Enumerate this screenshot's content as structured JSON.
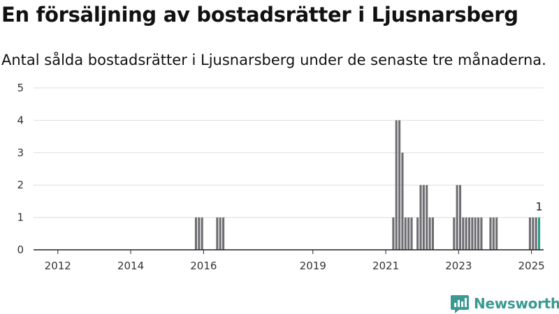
{
  "title": "En försäljning av bostadsrätter i Ljusnarsberg",
  "subtitle": "Antal sålda bostadsrätter i Ljusnarsberg under de senaste tre månaderna.",
  "brand": {
    "name": "Newsworthy",
    "icon": "newsworthy-logo-icon"
  },
  "colors": {
    "bar": "#6e6e73",
    "highlight": "#2a9d8f",
    "grid": "#dddddd",
    "axis": "#222222"
  },
  "chart_data": {
    "type": "bar",
    "x_axis": {
      "type": "date",
      "range": [
        "2011-05",
        "2025-05"
      ],
      "ticks": [
        "2012",
        "2014",
        "2016",
        "2019",
        "2021",
        "2023",
        "2025"
      ]
    },
    "y_axis": {
      "range": [
        0,
        5
      ],
      "ticks": [
        0,
        1,
        2,
        3,
        4,
        5
      ]
    },
    "grid": true,
    "series": [
      {
        "points": [
          {
            "x": "2015-10",
            "y": 1
          },
          {
            "x": "2015-11",
            "y": 1
          },
          {
            "x": "2015-12",
            "y": 1
          },
          {
            "x": "2016-05",
            "y": 1
          },
          {
            "x": "2016-06",
            "y": 1
          },
          {
            "x": "2016-07",
            "y": 1
          },
          {
            "x": "2021-03",
            "y": 1
          },
          {
            "x": "2021-04",
            "y": 4
          },
          {
            "x": "2021-05",
            "y": 4
          },
          {
            "x": "2021-06",
            "y": 3
          },
          {
            "x": "2021-07",
            "y": 1
          },
          {
            "x": "2021-08",
            "y": 1
          },
          {
            "x": "2021-09",
            "y": 1
          },
          {
            "x": "2021-11",
            "y": 1
          },
          {
            "x": "2021-12",
            "y": 2
          },
          {
            "x": "2022-01",
            "y": 2
          },
          {
            "x": "2022-02",
            "y": 2
          },
          {
            "x": "2022-03",
            "y": 1
          },
          {
            "x": "2022-04",
            "y": 1
          },
          {
            "x": "2022-11",
            "y": 1
          },
          {
            "x": "2022-12",
            "y": 2
          },
          {
            "x": "2023-01",
            "y": 2
          },
          {
            "x": "2023-02",
            "y": 1
          },
          {
            "x": "2023-03",
            "y": 1
          },
          {
            "x": "2023-04",
            "y": 1
          },
          {
            "x": "2023-05",
            "y": 1
          },
          {
            "x": "2023-06",
            "y": 1
          },
          {
            "x": "2023-07",
            "y": 1
          },
          {
            "x": "2023-08",
            "y": 1
          },
          {
            "x": "2023-11",
            "y": 1
          },
          {
            "x": "2023-12",
            "y": 1
          },
          {
            "x": "2024-01",
            "y": 1
          },
          {
            "x": "2024-12",
            "y": 1
          },
          {
            "x": "2025-01",
            "y": 1
          },
          {
            "x": "2025-02",
            "y": 1
          },
          {
            "x": "2025-03",
            "y": 1,
            "highlight": true,
            "label": "1"
          }
        ]
      }
    ]
  }
}
